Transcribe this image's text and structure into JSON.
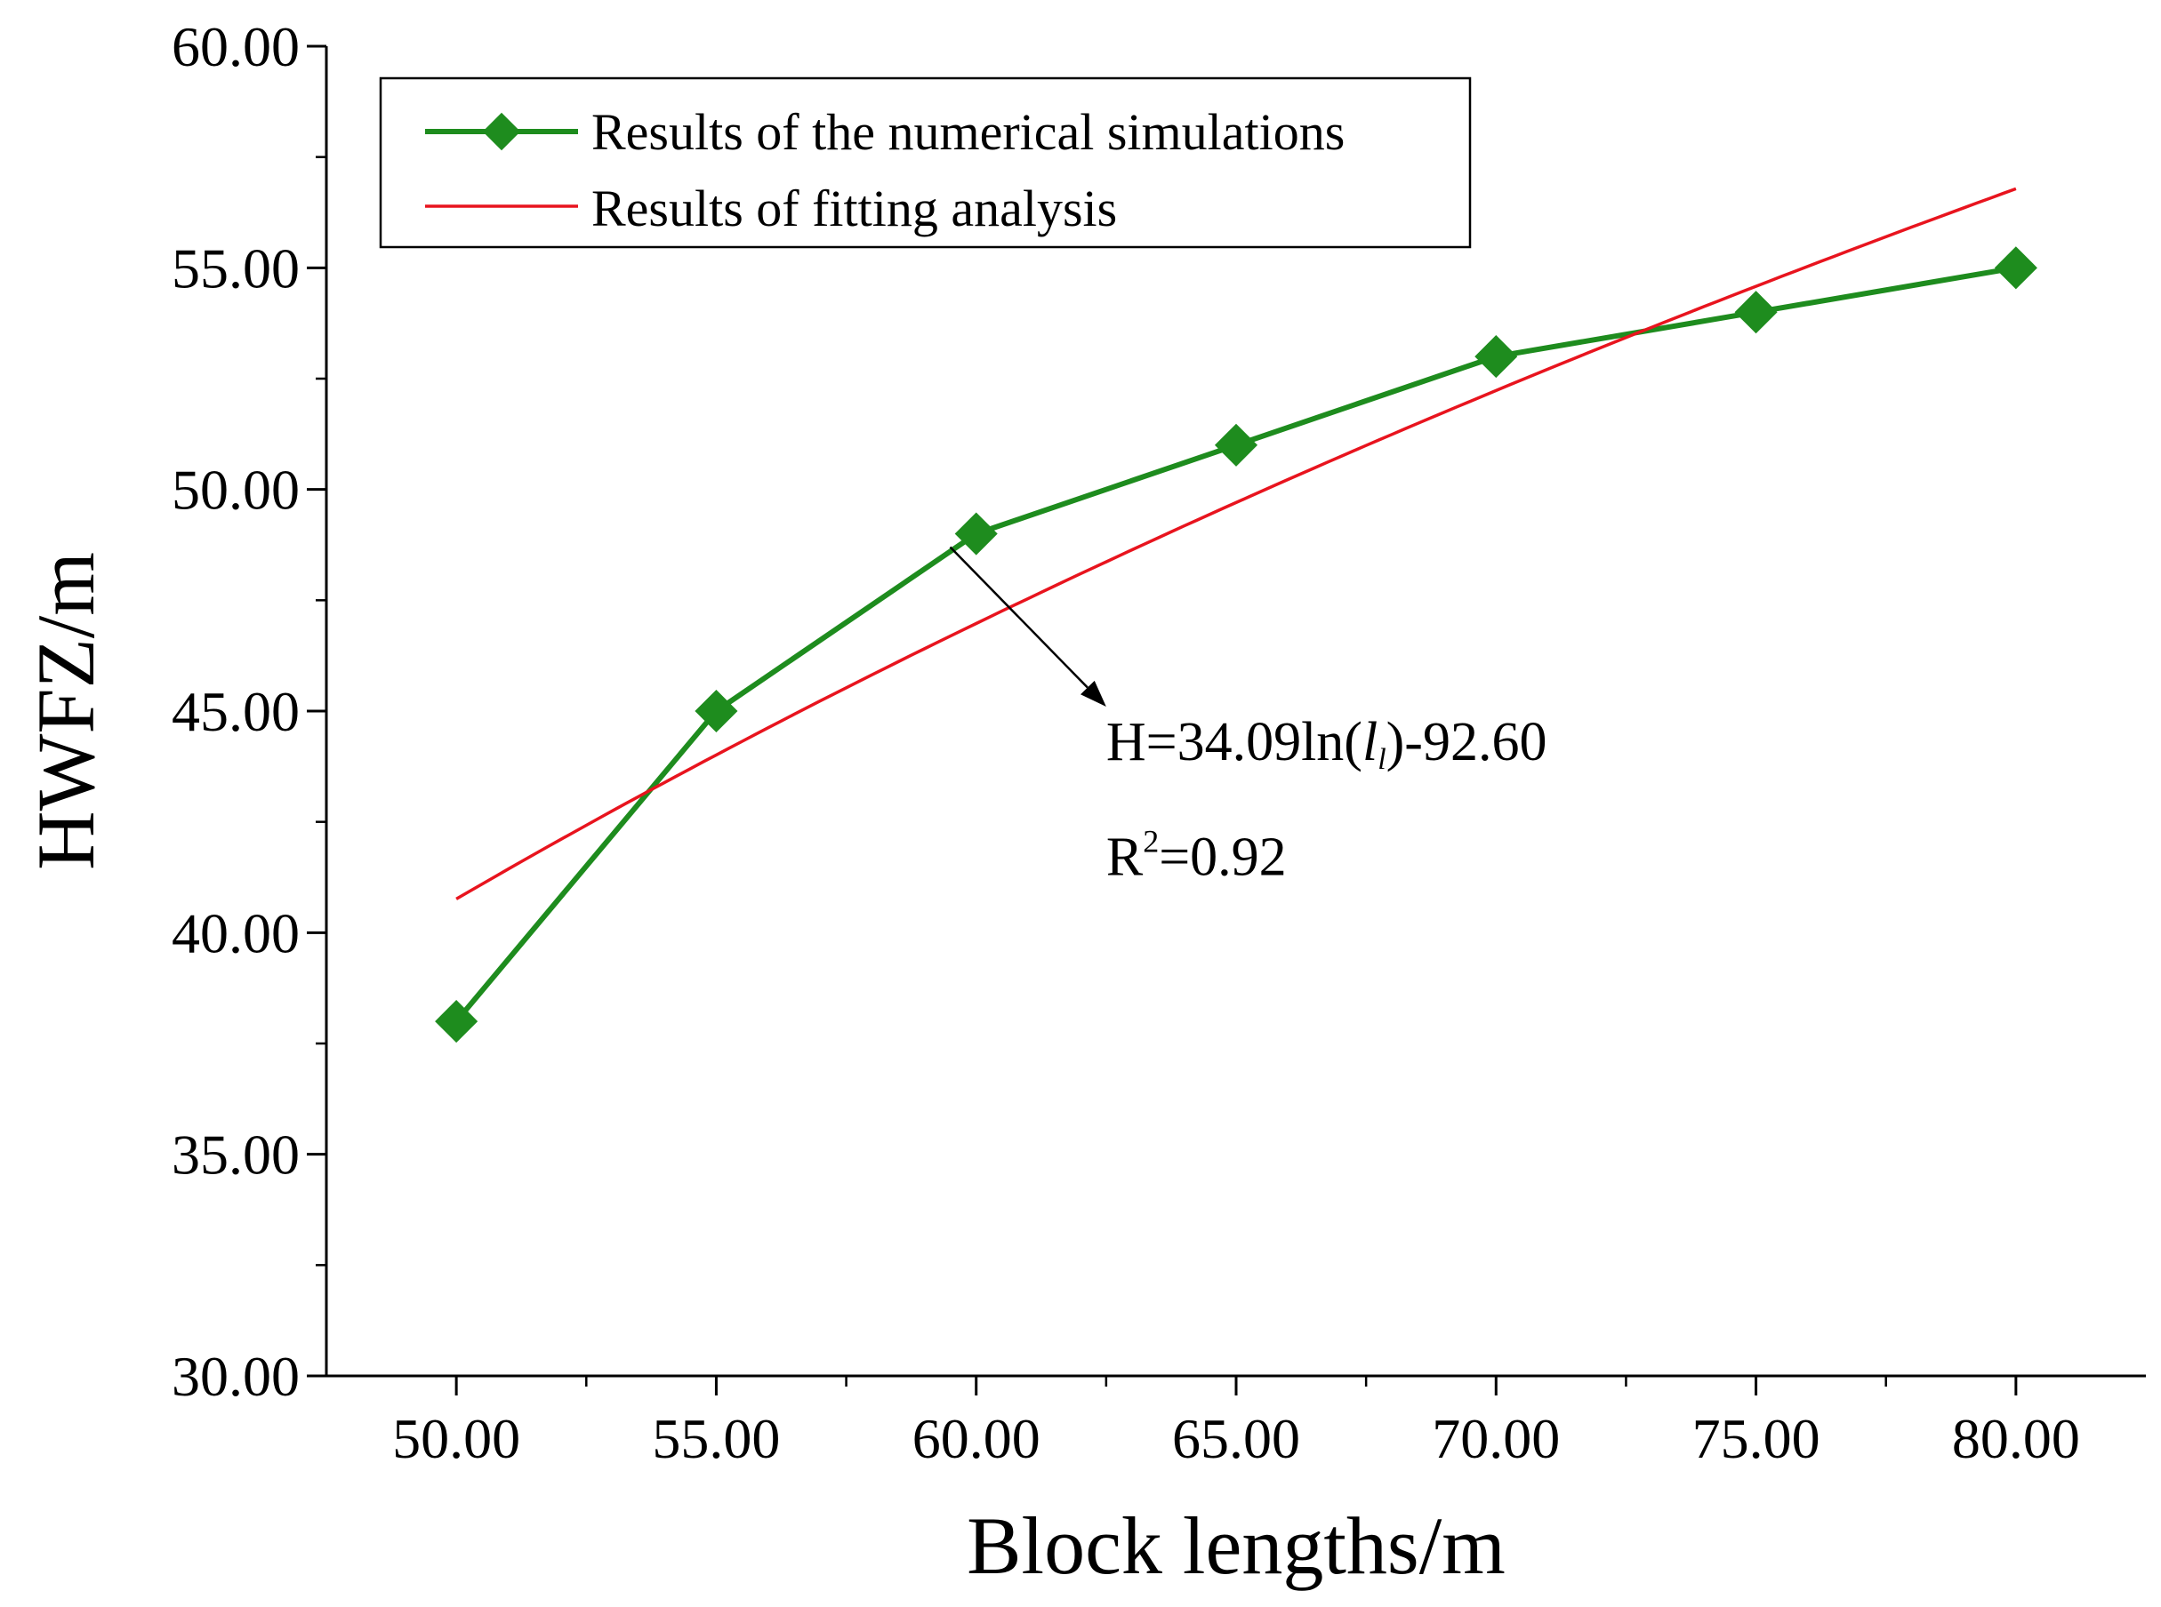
{
  "chart_data": {
    "type": "line",
    "xlabel": "Block lengths/m",
    "ylabel": "HWFZ/m",
    "xlim": [
      47.5,
      82.5
    ],
    "ylim": [
      30,
      60
    ],
    "x_ticks": [
      "50.00",
      "55.00",
      "60.00",
      "65.00",
      "70.00",
      "75.00",
      "80.00"
    ],
    "y_ticks": [
      "30.00",
      "35.00",
      "40.00",
      "45.00",
      "50.00",
      "55.00",
      "60.00"
    ],
    "x_tick_values": [
      50,
      55,
      60,
      65,
      70,
      75,
      80
    ],
    "y_tick_values": [
      30,
      35,
      40,
      45,
      50,
      55,
      60
    ],
    "grid": false,
    "legend_position": "top-left",
    "series": [
      {
        "name": "Results of the numerical simulations",
        "color": "#1e8c1e",
        "marker": "diamond",
        "x": [
          50,
          55,
          60,
          65,
          70,
          75,
          80
        ],
        "y": [
          38,
          45,
          49,
          51,
          53,
          54,
          55
        ]
      },
      {
        "name": "Results of fitting analysis",
        "color": "#e8141e",
        "marker": "none",
        "fit": {
          "a": 34.09,
          "b": -92.6
        }
      }
    ],
    "annotation": {
      "equation_prefix": "H=34.09ln(",
      "equation_var": "l",
      "equation_sub": "l",
      "equation_suffix": ")-92.60",
      "r2_base": "R",
      "r2_sup": "2",
      "r2_value": "=0.92",
      "arrow_from": [
        59.5,
        48.7
      ],
      "arrow_to": [
        62.5,
        45.1
      ],
      "text_at": [
        62.5,
        43.9
      ],
      "r2_at": [
        62.5,
        41.3
      ]
    }
  }
}
